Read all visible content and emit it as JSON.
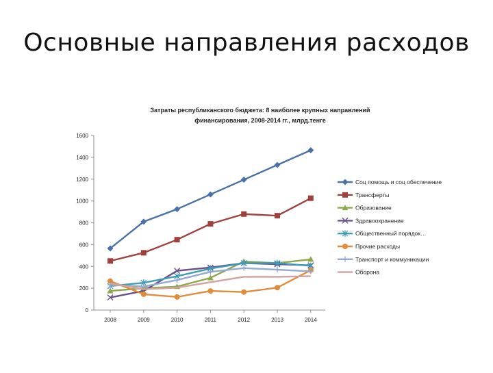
{
  "slide": {
    "title": "Основные направления расходов"
  },
  "chart_data": {
    "type": "line",
    "title_line1": "Затраты республиканского бюджета: 8 наиболее крупных направлений",
    "title_line2": "финансирования,  2008-2014 гг., млрд.тенге",
    "xlabel": "",
    "ylabel": "",
    "categories": [
      "2008",
      "2009",
      "2010",
      "2011",
      "2012",
      "2013",
      "2014"
    ],
    "ylim": [
      0,
      1600
    ],
    "yticks": [
      0,
      200,
      400,
      600,
      800,
      1000,
      1200,
      1400,
      1600
    ],
    "ytick_labels": [
      "0",
      "200",
      "400",
      "600",
      "800",
      "1000",
      "1200",
      "1400",
      "1600"
    ],
    "grid": false,
    "legend_position": "right",
    "series": [
      {
        "name": "Соц помощь и соц обеспечение",
        "color": "#4a72a8",
        "marker": "diamond",
        "values": [
          565,
          810,
          925,
          1060,
          1195,
          1330,
          1465
        ]
      },
      {
        "name": "Трансферты",
        "color": "#a0413e",
        "marker": "square",
        "values": [
          450,
          525,
          645,
          790,
          880,
          865,
          1025
        ]
      },
      {
        "name": "Образование",
        "color": "#8aa84a",
        "marker": "triangle",
        "values": [
          175,
          200,
          215,
          295,
          445,
          430,
          465
        ]
      },
      {
        "name": "Здравоохранение",
        "color": "#6b4e8c",
        "marker": "x",
        "values": [
          115,
          175,
          360,
          390,
          430,
          420,
          410
        ]
      },
      {
        "name": "Общественный порядок…",
        "color": "#3f9cb8",
        "marker": "star",
        "values": [
          220,
          250,
          310,
          380,
          430,
          430,
          405
        ]
      },
      {
        "name": "Прочие расходы",
        "color": "#e08c3a",
        "marker": "circle",
        "values": [
          265,
          145,
          120,
          175,
          165,
          205,
          365
        ]
      },
      {
        "name": "Транспорт и коммуникации",
        "color": "#93a9d1",
        "marker": "plus",
        "values": [
          230,
          215,
          275,
          350,
          385,
          370,
          355
        ]
      },
      {
        "name": "Оборона",
        "color": "#d4a29e",
        "marker": "none",
        "values": [
          245,
          190,
          205,
          255,
          305,
          305,
          310
        ]
      }
    ]
  }
}
